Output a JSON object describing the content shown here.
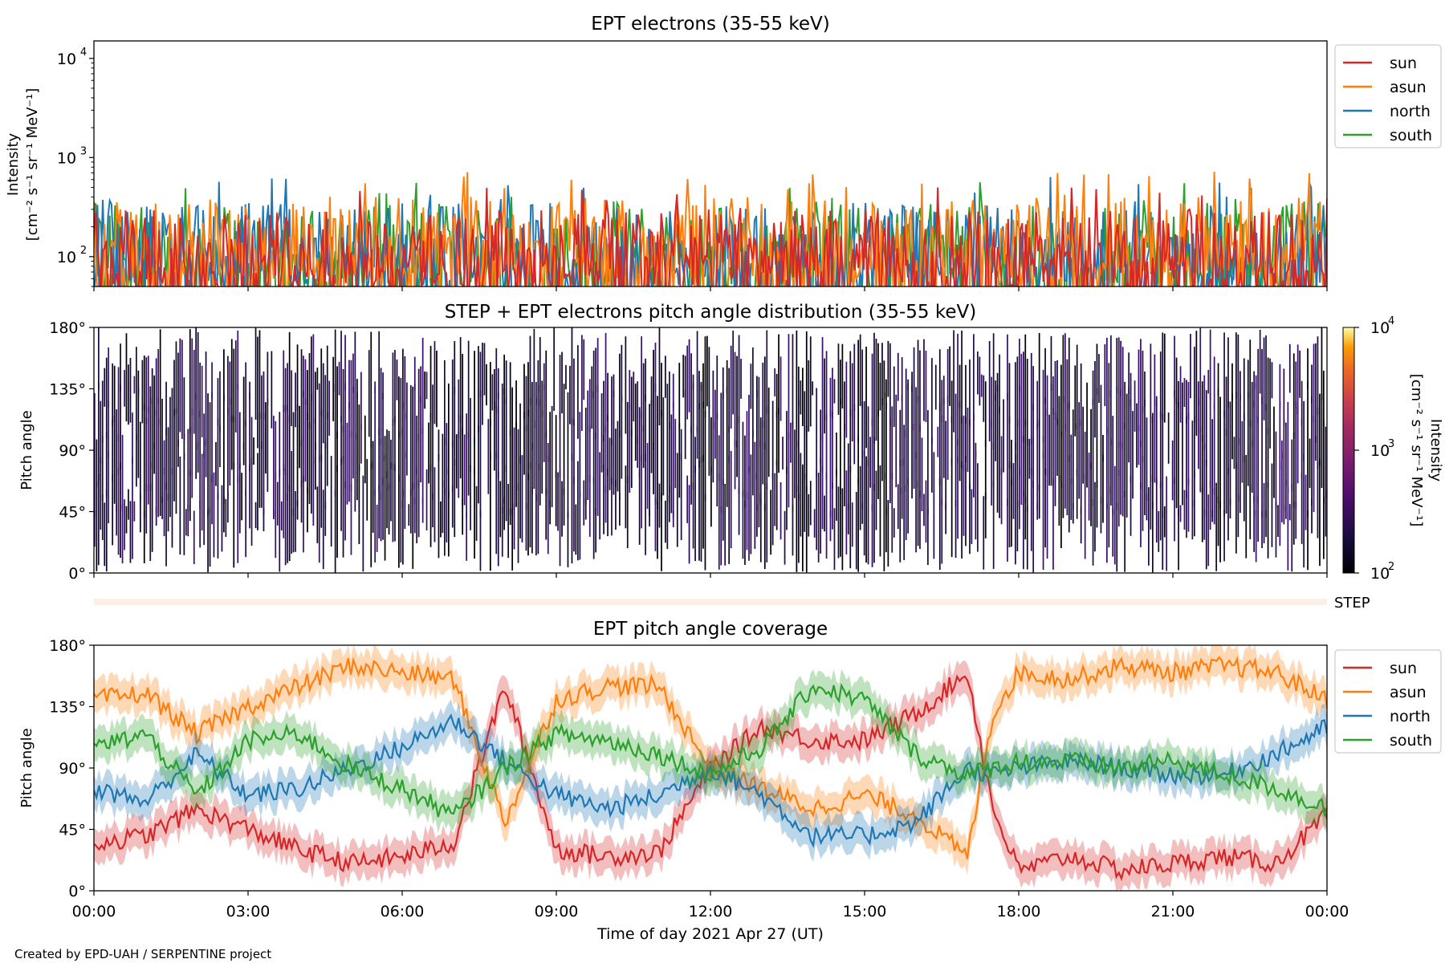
{
  "credit": "Created by EPD-UAH / SERPENTINE project",
  "colors": {
    "sun": "#d62728",
    "asun": "#ff7f0e",
    "north": "#1f77b4",
    "south": "#2ca02c",
    "step_band": "#fdeee6"
  },
  "legend": [
    "sun",
    "asun",
    "north",
    "south"
  ],
  "xaxis": {
    "label": "Time of day 2021 Apr 27 (UT)",
    "ticks": [
      "00:00",
      "03:00",
      "06:00",
      "09:00",
      "12:00",
      "15:00",
      "18:00",
      "21:00",
      "00:00"
    ]
  },
  "step_label": "STEP",
  "chart_data": [
    {
      "type": "line",
      "title": "EPT electrons (35-55 keV)",
      "ylabel_line1": "Intensity",
      "ylabel_line2": "[cm⁻² s⁻¹ sr⁻¹ MeV⁻¹]",
      "yscale": "log",
      "ylim": [
        50,
        15000
      ],
      "yticks": [
        {
          "base": "10",
          "exp": "2",
          "value": 100
        },
        {
          "base": "10",
          "exp": "3",
          "value": 1000
        },
        {
          "base": "10",
          "exp": "4",
          "value": 10000
        }
      ],
      "xlim_hours": [
        0,
        24
      ],
      "legend_position": "upper right, outside",
      "series": [
        {
          "name": "sun",
          "typical_range": [
            50,
            300
          ],
          "max": 500
        },
        {
          "name": "asun",
          "typical_range": [
            60,
            400
          ],
          "max": 730
        },
        {
          "name": "north",
          "typical_range": [
            50,
            350
          ],
          "max": 650
        },
        {
          "name": "south",
          "typical_range": [
            50,
            350
          ],
          "max": 580
        }
      ]
    },
    {
      "type": "heatmap",
      "title": "STEP + EPT electrons pitch angle distribution (35-55 keV)",
      "ylabel": "Pitch angle",
      "ylim": [
        0,
        180
      ],
      "yticks": [
        "0°",
        "45°",
        "90°",
        "135°",
        "180°"
      ],
      "colorbar": {
        "label_line1": "Intensity",
        "label_line2": "[cm⁻² s⁻¹ sr⁻¹ MeV⁻¹]",
        "scale": "log",
        "range": [
          100,
          10000
        ],
        "ticks": [
          {
            "base": "10",
            "exp": "2"
          },
          {
            "base": "10",
            "exp": "3"
          },
          {
            "base": "10",
            "exp": "4"
          }
        ],
        "colormap": "inferno"
      }
    },
    {
      "type": "line",
      "title": "EPT pitch angle coverage",
      "ylabel": "Pitch angle",
      "ylim": [
        0,
        180
      ],
      "yticks": [
        "0°",
        "45°",
        "90°",
        "135°",
        "180°"
      ],
      "xlim_hours": [
        0,
        24
      ],
      "legend_position": "upper right, outside",
      "series": [
        {
          "name": "sun",
          "x_hours": [
            0,
            1,
            2,
            3,
            4,
            5,
            6,
            7,
            8,
            9,
            10,
            11,
            12,
            13,
            14,
            15,
            16,
            17,
            17.5,
            18,
            19,
            20,
            21,
            22,
            23,
            24
          ],
          "y": [
            35,
            40,
            60,
            45,
            30,
            20,
            25,
            35,
            150,
            30,
            25,
            28,
            90,
            120,
            110,
            110,
            130,
            160,
            60,
            15,
            25,
            15,
            20,
            25,
            20,
            55
          ]
        },
        {
          "name": "asun",
          "x_hours": [
            0,
            1,
            2,
            3,
            4,
            5,
            6,
            7,
            8,
            9,
            10,
            11,
            12,
            13,
            14,
            15,
            16,
            17,
            17.5,
            18,
            19,
            20,
            21,
            22,
            23,
            24
          ],
          "y": [
            140,
            145,
            115,
            135,
            150,
            165,
            160,
            155,
            50,
            140,
            150,
            150,
            90,
            75,
            60,
            70,
            55,
            25,
            130,
            160,
            155,
            165,
            160,
            165,
            160,
            140
          ]
        },
        {
          "name": "north",
          "x_hours": [
            0,
            1,
            2,
            3,
            4,
            5,
            6,
            7,
            8,
            9,
            10,
            11,
            12,
            13,
            14,
            15,
            16,
            17,
            17.5,
            18,
            19,
            20,
            21,
            22,
            23,
            24
          ],
          "y": [
            75,
            65,
            100,
            70,
            75,
            90,
            105,
            125,
            95,
            70,
            60,
            70,
            90,
            70,
            40,
            40,
            50,
            90,
            85,
            90,
            95,
            90,
            85,
            85,
            100,
            120
          ]
        },
        {
          "name": "south",
          "x_hours": [
            0,
            1,
            2,
            3,
            4,
            5,
            6,
            7,
            8,
            9,
            10,
            11,
            12,
            13,
            14,
            15,
            16,
            17,
            17.5,
            18,
            19,
            20,
            21,
            22,
            23,
            24
          ],
          "y": [
            105,
            115,
            70,
            110,
            115,
            90,
            75,
            55,
            90,
            115,
            110,
            100,
            85,
            105,
            150,
            140,
            100,
            85,
            90,
            95,
            95,
            90,
            95,
            85,
            75,
            60
          ]
        }
      ]
    }
  ]
}
